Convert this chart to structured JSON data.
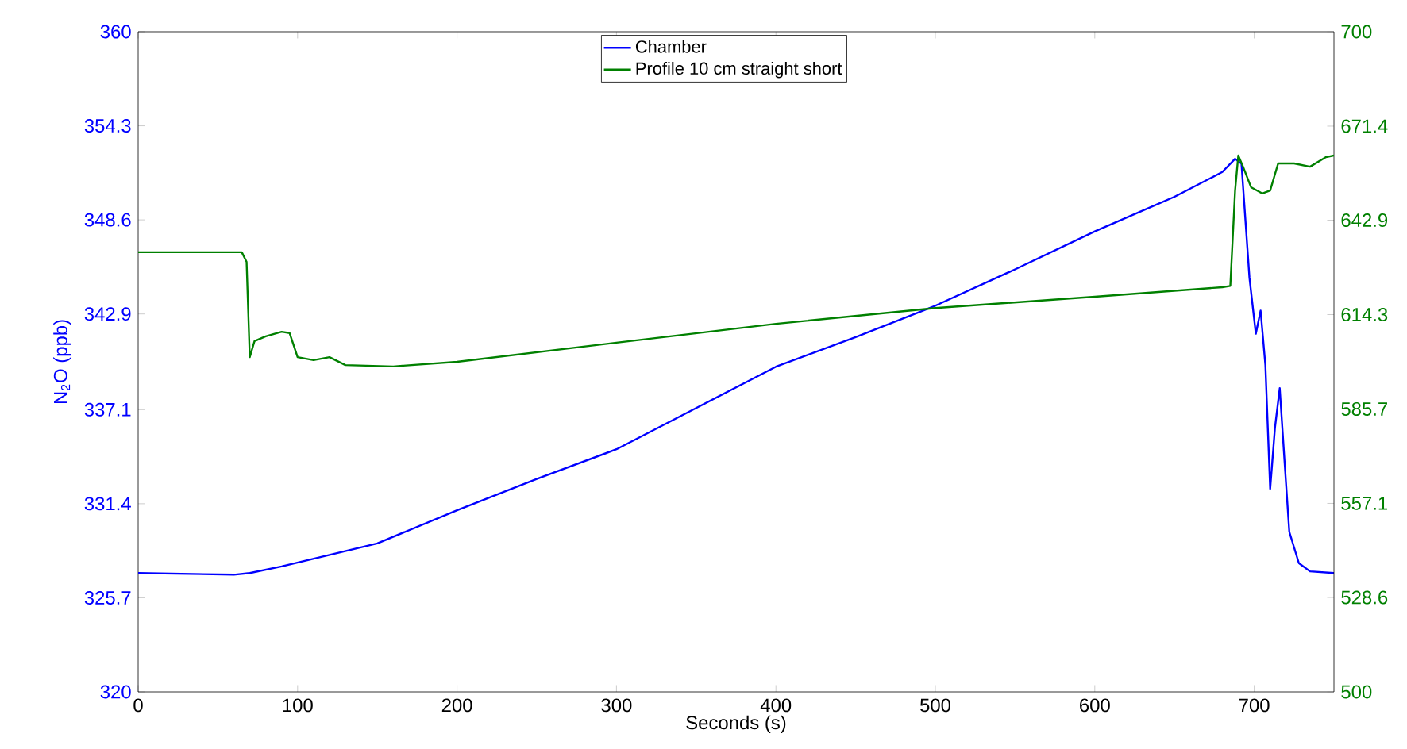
{
  "chart_data": {
    "type": "line",
    "xlabel": "Seconds (s)",
    "ylabel": "N$_{2}$O (ppb)",
    "xlim": [
      0,
      750
    ],
    "xticks": [
      0,
      100,
      200,
      300,
      400,
      500,
      600,
      700
    ],
    "ylim": [
      320,
      360
    ],
    "yticks": [
      320,
      325.7,
      331.4,
      337.1,
      342.9,
      348.6,
      354.3,
      360
    ],
    "y2lim": [
      500,
      700
    ],
    "y2ticks": [
      500,
      528.6,
      557.1,
      585.7,
      614.3,
      642.9,
      671.4,
      700
    ],
    "legend": "top",
    "grid": false,
    "series": [
      {
        "name": "Chamber",
        "color": "#0000ff",
        "x": [
          0,
          60,
          70,
          90,
          120,
          150,
          200,
          250,
          300,
          350,
          400,
          450,
          500,
          550,
          600,
          650,
          680,
          688,
          692,
          697,
          701,
          704,
          707,
          710,
          713,
          716,
          719,
          722,
          728,
          735,
          750
        ],
        "values": [
          327.2,
          327.1,
          327.2,
          327.6,
          328.3,
          329.0,
          331.0,
          332.9,
          334.7,
          337.2,
          339.7,
          341.5,
          343.4,
          345.6,
          347.9,
          350.0,
          351.5,
          352.3,
          352.0,
          345.1,
          341.7,
          343.1,
          339.8,
          332.3,
          336.0,
          338.4,
          334.0,
          329.7,
          327.8,
          327.3,
          327.2
        ]
      },
      {
        "name": "Profile 10 cm straight short",
        "color": "#008000",
        "axis": "y2",
        "x": [
          0,
          65,
          68,
          70,
          73,
          80,
          90,
          95,
          100,
          110,
          120,
          130,
          160,
          200,
          300,
          400,
          500,
          600,
          680,
          685,
          688,
          690,
          693,
          698,
          705,
          710,
          715,
          725,
          735,
          745,
          750
        ],
        "values": [
          633.2,
          633.2,
          630.3,
          601.4,
          606.3,
          607.7,
          609.1,
          608.7,
          601.4,
          600.5,
          601.4,
          599.0,
          598.6,
          600.0,
          605.8,
          611.5,
          616.3,
          619.7,
          622.6,
          623.0,
          651.9,
          662.5,
          659.1,
          652.9,
          651.0,
          651.9,
          660.1,
          660.1,
          659.1,
          662.0,
          662.5
        ]
      }
    ]
  }
}
